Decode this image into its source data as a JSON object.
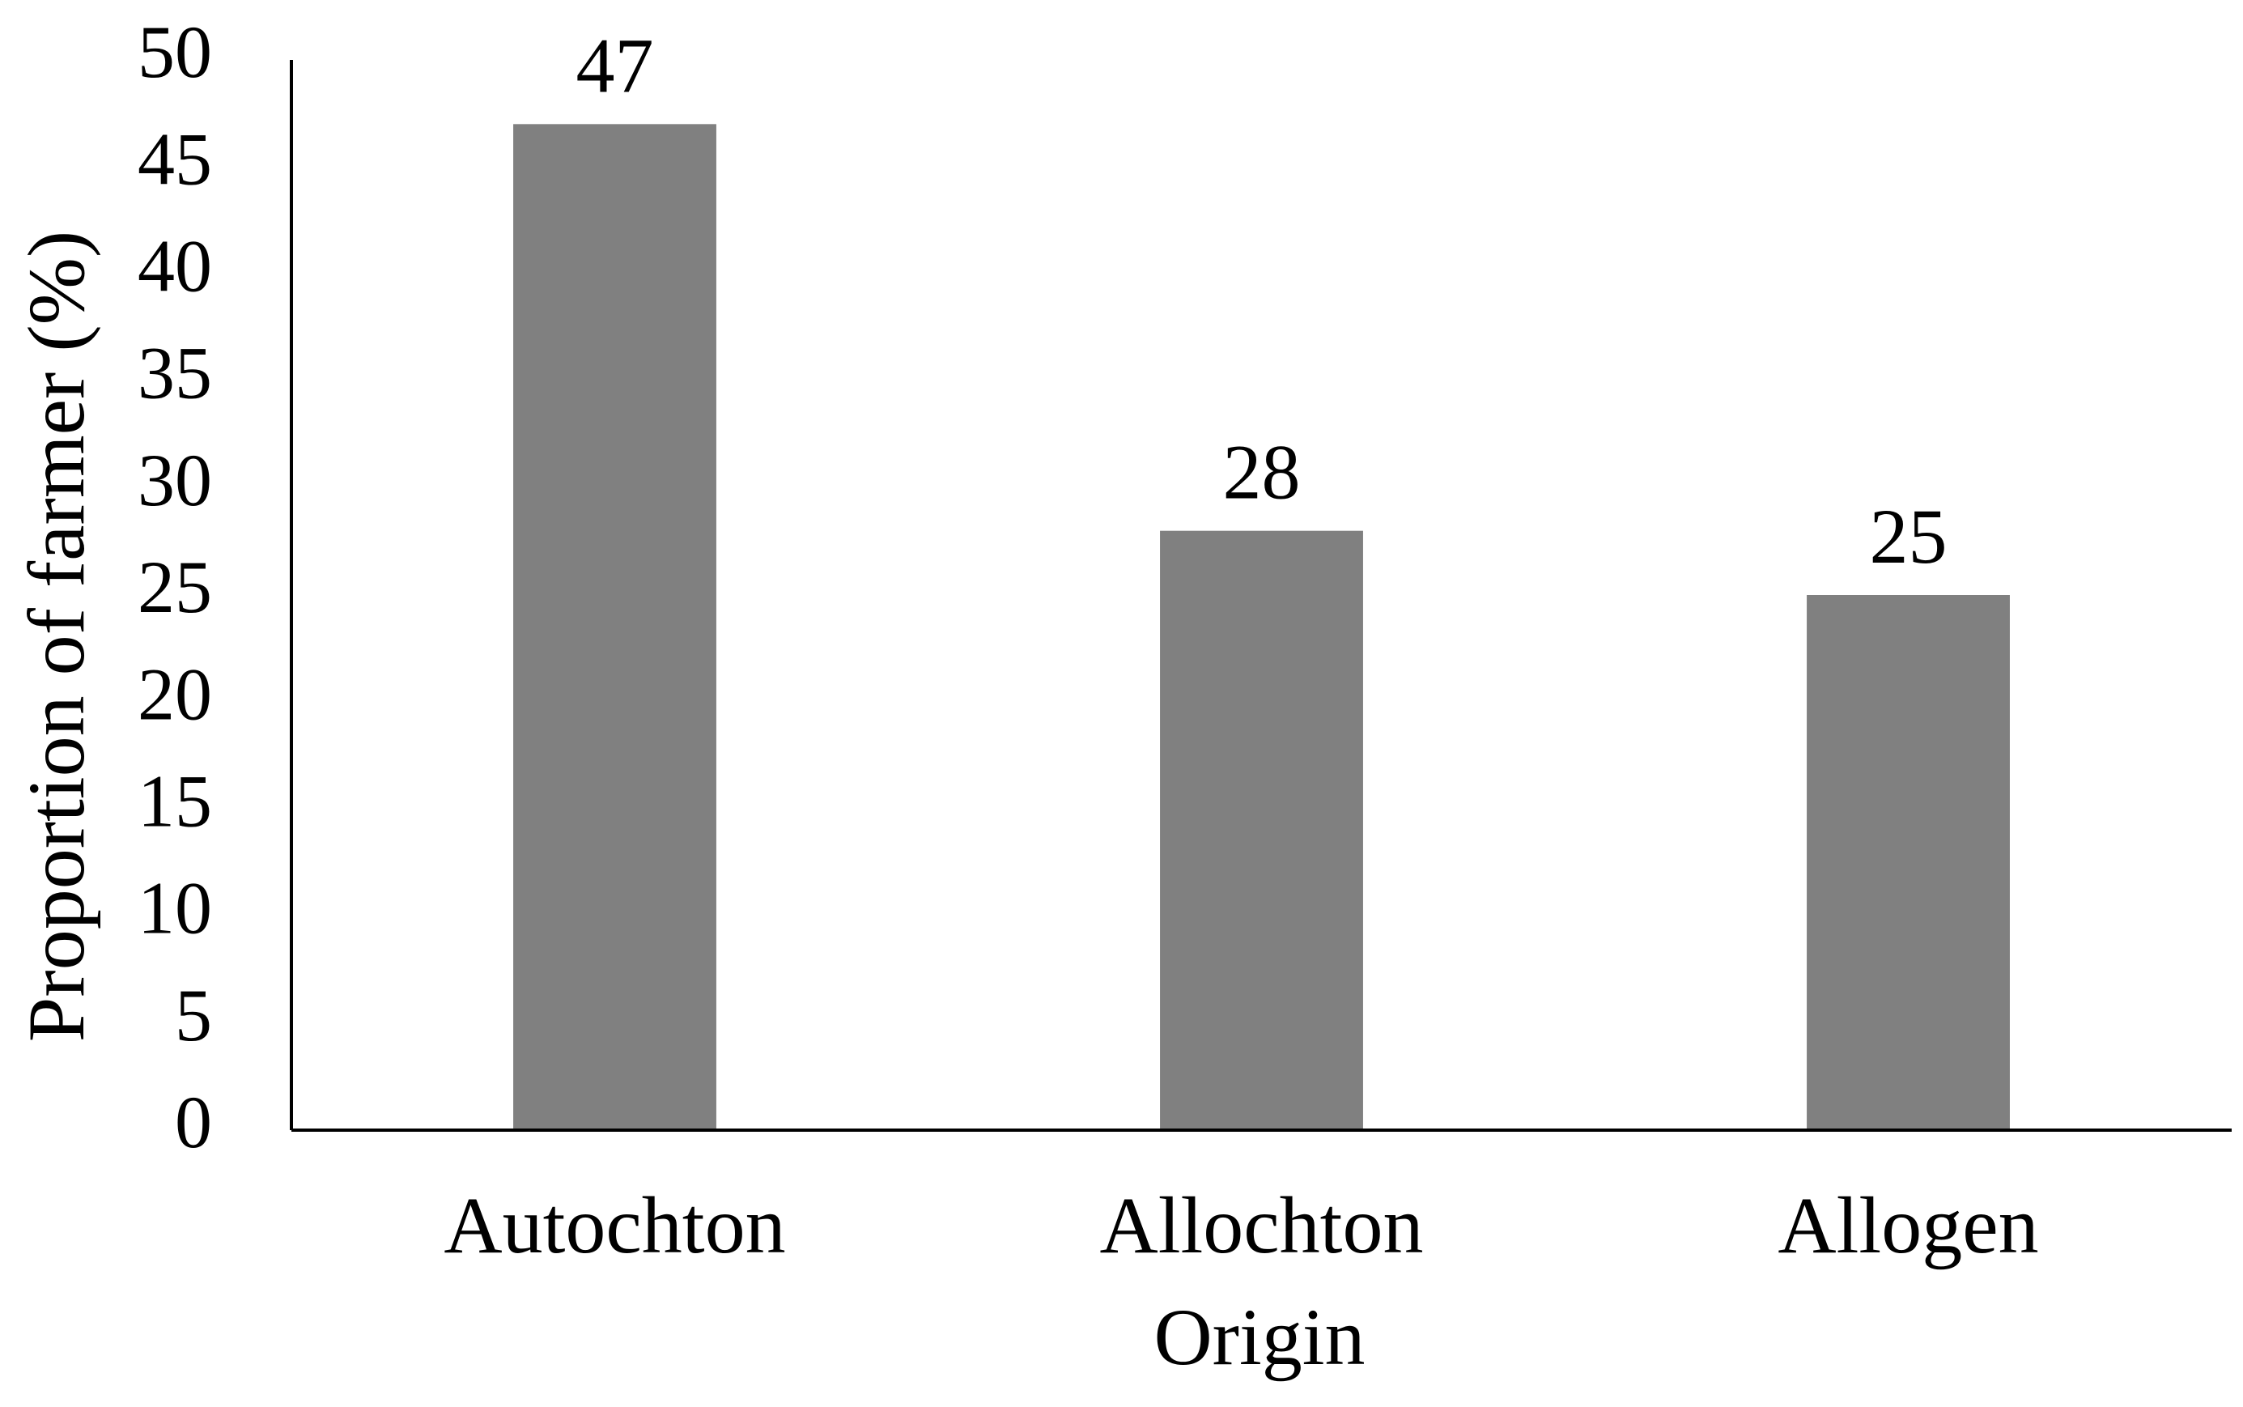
{
  "chart_data": {
    "type": "bar",
    "x_label": "Origin",
    "y_label": "Proportion of farmer (%)",
    "categories": [
      "Autochton",
      "Allochton",
      "Allogen"
    ],
    "values": [
      47,
      28,
      25
    ],
    "color": "#808080",
    "ylim": [
      0,
      50
    ],
    "yticks": [
      0,
      5,
      10,
      15,
      20,
      25,
      30,
      35,
      40,
      45,
      50
    ],
    "grid": false
  }
}
